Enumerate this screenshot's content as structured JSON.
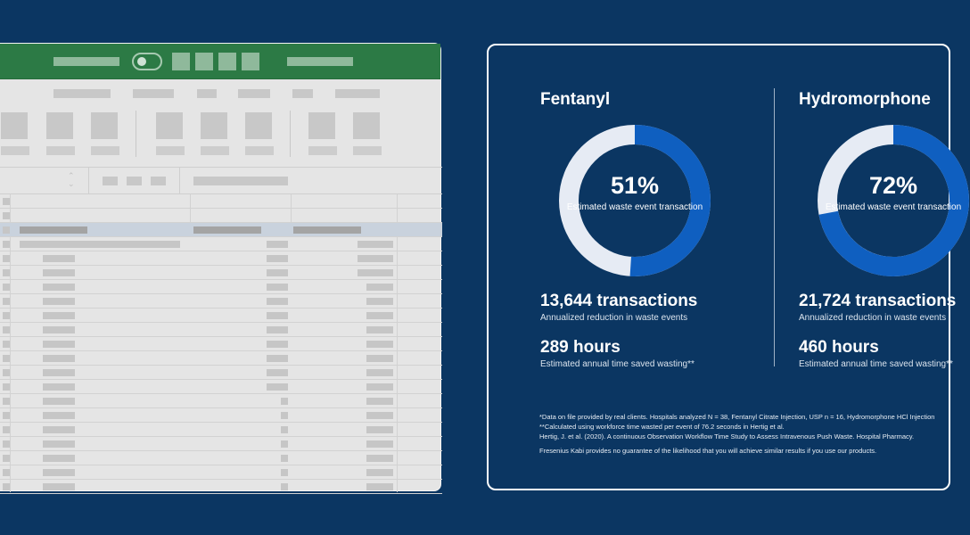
{
  "card": {
    "drugs": [
      {
        "name": "Fentanyl",
        "percent": "51%",
        "percent_value": 51,
        "donut_label": "Estimated waste event transaction",
        "transactions": "13,644 transactions",
        "transactions_sub": "Annualized reduction in waste events",
        "hours": "289 hours",
        "hours_sub": "Estimated annual time saved wasting**"
      },
      {
        "name": "Hydromorphone",
        "percent": "72%",
        "percent_value": 72,
        "donut_label": "Estimated waste event transaction",
        "transactions": "21,724 transactions",
        "transactions_sub": "Annualized reduction in waste events",
        "hours": "460 hours",
        "hours_sub": "Estimated annual time saved wasting**"
      }
    ],
    "footnotes": [
      "*Data on file provided by real clients. Hospitals analyzed N = 38, Fentanyl Citrate Injection, USP n = 16, Hydromorphone HCl Injection",
      "**Calculated using workforce time wasted per event of 76.2 seconds in Hertig et al.",
      "Hertig, J. et al. (2020). A continuous Observation Workflow Time Study to Assess Intravenous Push Waste. Hospital Pharmacy."
    ],
    "disclaimer": "Fresenius Kabi provides no guarantee of the likelihood that you will achieve similar results if you use our products."
  },
  "colors": {
    "background": "#0b3662",
    "donut_fill": "#0f5fc0",
    "donut_track": "#e6ebf4",
    "sheet_header": "#2c7a45"
  }
}
